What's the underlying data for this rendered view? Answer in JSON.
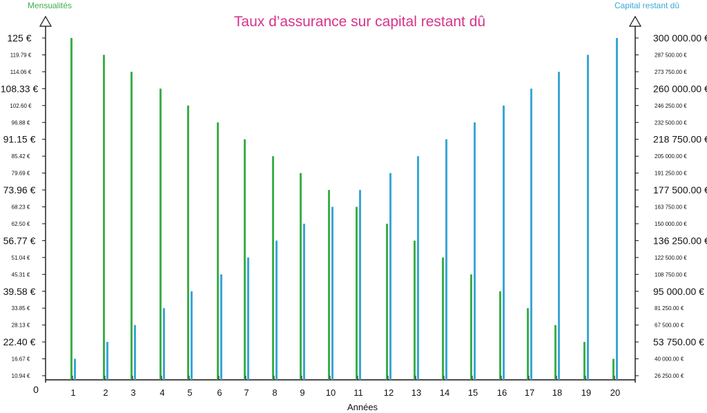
{
  "chart_data": {
    "type": "bar",
    "title": "Taux d’assurance sur capital restant dû",
    "left_axis_label": "Mensualités",
    "right_axis_label": "Capital restant dû",
    "xlabel": "Années",
    "origin_label": "0",
    "categories": [
      "1",
      "2",
      "3",
      "4",
      "5",
      "6",
      "7",
      "8",
      "9",
      "10",
      "11",
      "12",
      "13",
      "14",
      "15",
      "16",
      "17",
      "18",
      "19",
      "20"
    ],
    "left_ticks": [
      {
        "label": "125 €",
        "value": 125,
        "major": true
      },
      {
        "label": "119.79 €",
        "value": 119.79,
        "major": false
      },
      {
        "label": "114.06 €",
        "value": 114.06,
        "major": false
      },
      {
        "label": "108.33 €",
        "value": 108.33,
        "major": true
      },
      {
        "label": "102.60 €",
        "value": 102.6,
        "major": false
      },
      {
        "label": "96.88 €",
        "value": 96.88,
        "major": false
      },
      {
        "label": "91.15 €",
        "value": 91.15,
        "major": true
      },
      {
        "label": "85.42 €",
        "value": 85.42,
        "major": false
      },
      {
        "label": "79.69 €",
        "value": 79.69,
        "major": false
      },
      {
        "label": "73.96 €",
        "value": 73.96,
        "major": true
      },
      {
        "label": "68.23 €",
        "value": 68.23,
        "major": false
      },
      {
        "label": "62.50 €",
        "value": 62.5,
        "major": false
      },
      {
        "label": "56.77 €",
        "value": 56.77,
        "major": true
      },
      {
        "label": "51.04 €",
        "value": 51.04,
        "major": false
      },
      {
        "label": "45.31 €",
        "value": 45.31,
        "major": false
      },
      {
        "label": "39.58 €",
        "value": 39.58,
        "major": true
      },
      {
        "label": "33.85 €",
        "value": 33.85,
        "major": false
      },
      {
        "label": "28.13 €",
        "value": 28.13,
        "major": false
      },
      {
        "label": "22.40 €",
        "value": 22.4,
        "major": true
      },
      {
        "label": "16.67 €",
        "value": 16.67,
        "major": false
      },
      {
        "label": "10.94 €",
        "value": 10.94,
        "major": false
      }
    ],
    "right_ticks": [
      {
        "label": "300 000.00 €",
        "value": 300000,
        "major": true
      },
      {
        "label": "287 500.00 €",
        "value": 287500,
        "major": false
      },
      {
        "label": "273 750.00 €",
        "value": 273750,
        "major": false
      },
      {
        "label": "260 000.00 €",
        "value": 260000,
        "major": true
      },
      {
        "label": "246 250.00 €",
        "value": 246250,
        "major": false
      },
      {
        "label": "232 500.00 €",
        "value": 232500,
        "major": false
      },
      {
        "label": "218 750.00 €",
        "value": 218750,
        "major": true
      },
      {
        "label": "205 000.00 €",
        "value": 205000,
        "major": false
      },
      {
        "label": "191 250.00 €",
        "value": 191250,
        "major": false
      },
      {
        "label": "177 500.00 €",
        "value": 177500,
        "major": true
      },
      {
        "label": "163 750.00 €",
        "value": 163750,
        "major": false
      },
      {
        "label": "150 000.00 €",
        "value": 150000,
        "major": false
      },
      {
        "label": "136 250.00 €",
        "value": 136250,
        "major": true
      },
      {
        "label": "122 500.00 €",
        "value": 122500,
        "major": false
      },
      {
        "label": "108 750.00 €",
        "value": 108750,
        "major": false
      },
      {
        "label": "95 000.00 €",
        "value": 95000,
        "major": true
      },
      {
        "label": "81 250.00 €",
        "value": 81250,
        "major": false
      },
      {
        "label": "67 500.00 €",
        "value": 67500,
        "major": false
      },
      {
        "label": "53 750.00 €",
        "value": 53750,
        "major": true
      },
      {
        "label": "40 000.00 €",
        "value": 40000,
        "major": false
      },
      {
        "label": "26 250.00 €",
        "value": 26250,
        "major": false
      }
    ],
    "series": [
      {
        "name": "Mensualités",
        "axis": "left",
        "color": "#3dae4b",
        "values": [
          125,
          119.79,
          114.06,
          108.33,
          102.6,
          96.88,
          91.15,
          85.42,
          79.69,
          73.96,
          68.23,
          62.5,
          56.77,
          51.04,
          45.31,
          39.58,
          33.85,
          28.13,
          22.4,
          16.67
        ]
      },
      {
        "name": "Capital restant dû",
        "axis": "right",
        "color": "#3aa7d6",
        "values": [
          40000,
          53750,
          67500,
          81250,
          95000,
          108750,
          122500,
          136250,
          150000,
          163750,
          177500,
          191250,
          205000,
          218750,
          232500,
          246250,
          260000,
          273750,
          287500,
          300000
        ]
      }
    ],
    "colors": {
      "title": "#d6338a",
      "left_axis_label": "#3dae4b",
      "right_axis_label": "#3aa7d6",
      "axis": "#111111"
    },
    "grid": false
  }
}
